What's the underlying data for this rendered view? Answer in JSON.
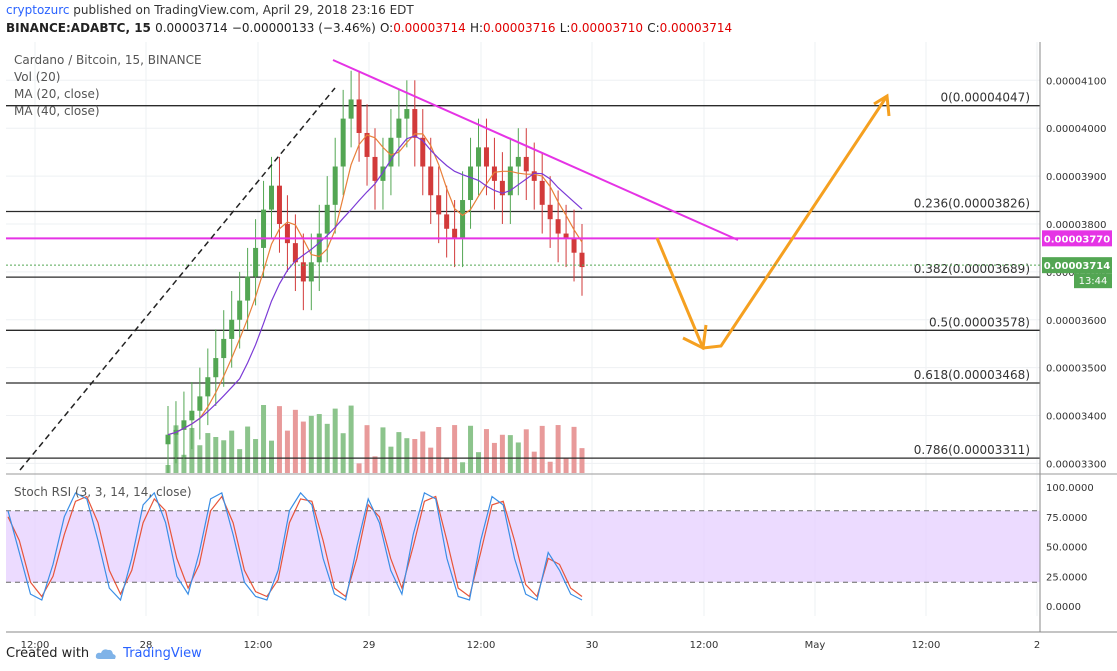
{
  "header": {
    "author": "cryptozurc",
    "published": "published on TradingView.com, April 29, 2018 23:16 EDT",
    "symbol_line": "BINANCE:ADABTC, 15",
    "last": "0.00003714",
    "change": "−0.00000133 (−3.46%)",
    "o_label": "O:",
    "o": "0.00003714",
    "h_label": "H:",
    "h": "0.00003716",
    "l_label": "L:",
    "l": "0.00003710",
    "c_label": "C:",
    "c": "0.00003714"
  },
  "legend": {
    "title": "Cardano / Bitcoin, 15, BINANCE",
    "vol": "Vol (20)",
    "ma20": "MA (20, close)",
    "ma40": "MA (40, close)",
    "stoch": "Stoch RSI (3, 3, 14, 14, close)"
  },
  "footer": {
    "created_with": "Created with",
    "brand": "TradingView"
  },
  "colors": {
    "up": "#53a653",
    "down": "#d23a3a",
    "ma20": "#e8803a",
    "ma40": "#7b3ad6",
    "trend": "#e533e5",
    "arrow": "#f5a020",
    "stoch_k": "#3a8ee6",
    "stoch_d": "#e8553a",
    "band": "#e4ccff"
  },
  "chart_data": {
    "type": "candlestick",
    "price_axis": {
      "ticks": [
        "0.00004100",
        "0.00004000",
        "0.00003900",
        "0.00003800",
        "0.00003700",
        "0.00003600",
        "0.00003500",
        "0.00003400",
        "0.00003300"
      ],
      "tick_values": [
        4.1e-05,
        4e-05,
        3.9e-05,
        3.8e-05,
        3.7e-05,
        3.6e-05,
        3.5e-05,
        3.4e-05,
        3.3e-05
      ],
      "range": [
        3.28e-05,
        4.18e-05
      ],
      "current_price": "0.00003714",
      "countdown": "13:44",
      "level_label": "0.00003770",
      "level_value": 3.77e-05
    },
    "time_axis": {
      "labels": [
        "12:00",
        "28",
        "12:00",
        "29",
        "12:00",
        "30",
        "12:00",
        "May",
        "12:00",
        "2"
      ]
    },
    "fibonacci": [
      {
        "label": "0(0.00004047)",
        "value": 4.047e-05
      },
      {
        "label": "0.236(0.00003826)",
        "value": 3.826e-05
      },
      {
        "label": "0.382(0.00003689)",
        "value": 3.689e-05
      },
      {
        "label": "0.5(0.00003578)",
        "value": 3.578e-05
      },
      {
        "label": "0.618(0.00003468)",
        "value": 3.468e-05
      },
      {
        "label": "0.786(0.00003311)",
        "value": 3.311e-05
      }
    ],
    "close_series": [
      3.36e-05,
      3.37e-05,
      3.39e-05,
      3.41e-05,
      3.44e-05,
      3.48e-05,
      3.52e-05,
      3.56e-05,
      3.6e-05,
      3.64e-05,
      3.69e-05,
      3.75e-05,
      3.83e-05,
      3.88e-05,
      3.8e-05,
      3.76e-05,
      3.72e-05,
      3.68e-05,
      3.72e-05,
      3.78e-05,
      3.84e-05,
      3.92e-05,
      4.02e-05,
      4.06e-05,
      3.99e-05,
      3.94e-05,
      3.89e-05,
      3.92e-05,
      3.98e-05,
      4.02e-05,
      4.04e-05,
      3.98e-05,
      3.92e-05,
      3.86e-05,
      3.82e-05,
      3.79e-05,
      3.77e-05,
      3.85e-05,
      3.92e-05,
      3.96e-05,
      3.92e-05,
      3.89e-05,
      3.86e-05,
      3.92e-05,
      3.94e-05,
      3.91e-05,
      3.89e-05,
      3.84e-05,
      3.81e-05,
      3.78e-05,
      3.77e-05,
      3.74e-05,
      3.71e-05
    ],
    "stoch_rsi": {
      "range": [
        0,
        100
      ],
      "ticks": [
        "100.0000",
        "75.0000",
        "50.0000",
        "25.0000",
        "0.0000"
      ],
      "tick_values": [
        100,
        75,
        50,
        25,
        0
      ],
      "band": [
        20,
        80
      ],
      "k": [
        80,
        45,
        10,
        5,
        35,
        75,
        95,
        90,
        55,
        15,
        5,
        40,
        85,
        95,
        70,
        25,
        10,
        45,
        90,
        95,
        60,
        20,
        8,
        5,
        30,
        80,
        95,
        85,
        40,
        10,
        5,
        50,
        90,
        70,
        30,
        10,
        60,
        95,
        90,
        40,
        8,
        5,
        55,
        92,
        85,
        40,
        10,
        5,
        45,
        30,
        10,
        5
      ],
      "d": [
        75,
        55,
        20,
        8,
        25,
        60,
        88,
        92,
        70,
        30,
        10,
        30,
        70,
        90,
        80,
        40,
        15,
        35,
        80,
        92,
        70,
        30,
        12,
        8,
        22,
        70,
        90,
        88,
        55,
        15,
        8,
        40,
        85,
        75,
        40,
        15,
        50,
        88,
        92,
        55,
        15,
        8,
        45,
        85,
        88,
        55,
        18,
        8,
        40,
        35,
        15,
        8
      ]
    }
  }
}
